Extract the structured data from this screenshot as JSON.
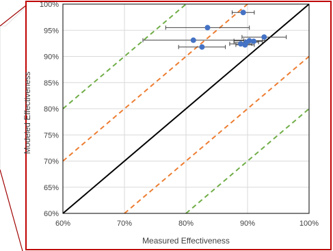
{
  "chart_data": {
    "type": "scatter",
    "title": "",
    "xlabel": "Measured Effectiveness",
    "ylabel": "Modeled Effectiveness",
    "xlim": [
      0.6,
      1.0
    ],
    "ylim": [
      0.6,
      1.0
    ],
    "x_ticks": [
      0.6,
      0.7,
      0.8,
      0.9,
      1.0
    ],
    "x_tick_labels": [
      "60%",
      "70%",
      "80%",
      "90%",
      "100%"
    ],
    "y_ticks": [
      0.6,
      0.65,
      0.7,
      0.75,
      0.8,
      0.85,
      0.9,
      0.95,
      1.0
    ],
    "y_tick_labels": [
      "60%",
      "65%",
      "70%",
      "75%",
      "80%",
      "85%",
      "90%",
      "95%",
      "100%"
    ],
    "grid": true,
    "legend": "none",
    "reference_lines": [
      {
        "kind": "parity",
        "offset": 0.0,
        "color": "#000000",
        "style": "solid"
      },
      {
        "kind": "band",
        "offset": 0.1,
        "color": "#ED7D31",
        "style": "dashed"
      },
      {
        "kind": "band",
        "offset": -0.1,
        "color": "#ED7D31",
        "style": "dashed"
      },
      {
        "kind": "band",
        "offset": 0.2,
        "color": "#70AD47",
        "style": "dashed"
      },
      {
        "kind": "band",
        "offset": -0.2,
        "color": "#70AD47",
        "style": "dashed"
      }
    ],
    "points": [
      {
        "x": 0.893,
        "y": 0.984,
        "xerr": 0.018
      },
      {
        "x": 0.835,
        "y": 0.955,
        "xerr": 0.068
      },
      {
        "x": 0.812,
        "y": 0.931,
        "xerr": 0.082
      },
      {
        "x": 0.826,
        "y": 0.918,
        "xerr": 0.038
      },
      {
        "x": 0.927,
        "y": 0.937,
        "xerr": 0.036
      },
      {
        "x": 0.903,
        "y": 0.93,
        "xerr": 0.025
      },
      {
        "x": 0.898,
        "y": 0.927,
        "xerr": 0.02
      },
      {
        "x": 0.889,
        "y": 0.924,
        "xerr": 0.018
      },
      {
        "x": 0.896,
        "y": 0.922,
        "xerr": 0.015
      },
      {
        "x": 0.91,
        "y": 0.929,
        "xerr": 0.014
      }
    ],
    "colors": {
      "points": "#4472C4",
      "error_bars": "#404040",
      "frame": "#C00000",
      "grid": "#D9D9D9"
    }
  }
}
